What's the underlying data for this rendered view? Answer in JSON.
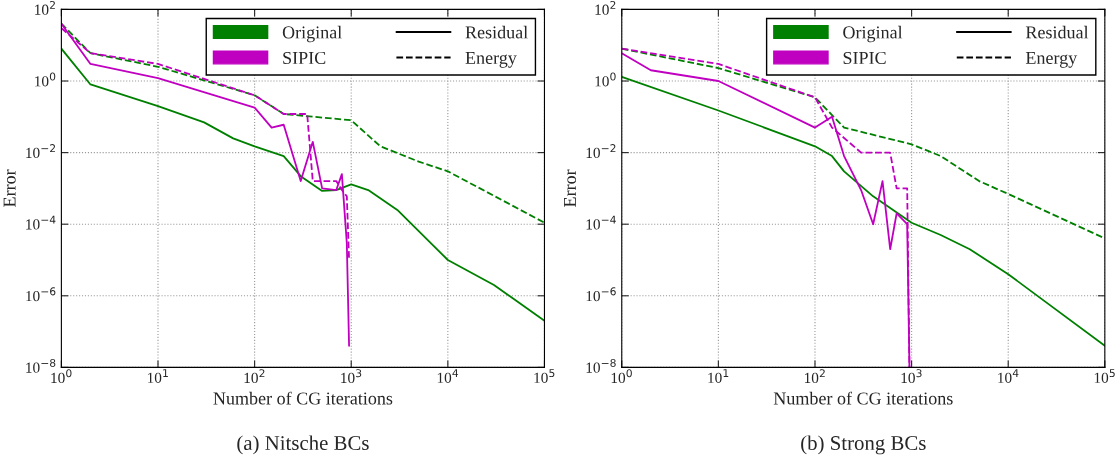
{
  "chart_data": [
    {
      "type": "line",
      "log": "xy",
      "xlabel": "Number of CG iterations",
      "ylabel": "Error",
      "annotations": [
        "(a) Nitsche BCs"
      ],
      "grid": true,
      "legend": "top right",
      "xlim": [
        1,
        100000
      ],
      "ylim": [
        1e-08,
        100
      ],
      "xticks": [
        {
          "value": 1,
          "label": "10$^{0}$"
        },
        {
          "value": 10,
          "label": "10$^{1}$"
        },
        {
          "value": 100,
          "label": "10$^{2}$"
        },
        {
          "value": 1000,
          "label": "10$^{3}$"
        },
        {
          "value": 10000,
          "label": "10$^{4}$"
        },
        {
          "value": 100000,
          "label": "10$^{5}$"
        }
      ],
      "yticks": [
        {
          "value": 1e-08,
          "label": "10$^{−8}$"
        },
        {
          "value": 1e-06,
          "label": "10$^{−6}$"
        },
        {
          "value": 0.0001,
          "label": "10$^{−4}$"
        },
        {
          "value": 0.01,
          "label": "10$^{−2}$"
        },
        {
          "value": 1,
          "label": "10$^{0}$"
        },
        {
          "value": 100,
          "label": "10$^{2}$"
        }
      ],
      "series": [
        {
          "name": "Original",
          "color": "#008000",
          "line_style": "solid",
          "x": [
            1,
            2,
            10,
            30,
            60,
            100,
            200,
            300,
            500,
            700,
            1000,
            1500,
            3000,
            10000,
            30000,
            100000
          ],
          "values": [
            8,
            0.8,
            0.2,
            0.07,
            0.025,
            0.015,
            0.008,
            0.0022,
            0.00085,
            0.0009,
            0.0013,
            0.0009,
            0.00025,
            1e-05,
            2e-06,
            2e-07
          ]
        },
        {
          "name": "Original",
          "color": "#008000",
          "line_style": "dashed",
          "x": [
            1,
            2,
            10,
            100,
            200,
            1000,
            2000,
            5000,
            10000,
            100000
          ],
          "values": [
            40,
            6,
            2.5,
            0.4,
            0.12,
            0.08,
            0.015,
            0.0056,
            0.003,
            0.00011
          ]
        },
        {
          "name": "SIPIC",
          "color": "#c000c0",
          "line_style": "solid",
          "x": [
            1,
            2,
            10,
            100,
            150,
            200,
            300,
            400,
            500,
            700,
            800,
            900,
            950
          ],
          "values": [
            40,
            3,
            1.2,
            0.18,
            0.05,
            0.06,
            0.0016,
            0.02,
            0.001,
            0.0009,
            0.0025,
            3e-05,
            4e-08
          ]
        },
        {
          "name": "SIPIC",
          "color": "#c000c0",
          "line_style": "dashed",
          "x": [
            1,
            2,
            10,
            100,
            200,
            350,
            400,
            700,
            800,
            900,
            950
          ],
          "values": [
            30,
            6,
            3,
            0.4,
            0.12,
            0.12,
            0.0016,
            0.0016,
            0.0009,
            0.0006,
            1e-05
          ]
        },
        {
          "name": "Residual",
          "color": "#000000",
          "line_style": "solid"
        },
        {
          "name": "Energy",
          "color": "#000000",
          "line_style": "dashed"
        }
      ]
    },
    {
      "type": "line",
      "log": "xy",
      "xlabel": "Number of CG iterations",
      "ylabel": "Error",
      "annotations": [
        "(b) Strong BCs"
      ],
      "grid": true,
      "legend": "top right",
      "xlim": [
        1,
        100000
      ],
      "ylim": [
        1e-08,
        100
      ],
      "xticks": [
        {
          "value": 1,
          "label": "10$^{0}$"
        },
        {
          "value": 10,
          "label": "10$^{1}$"
        },
        {
          "value": 100,
          "label": "10$^{2}$"
        },
        {
          "value": 1000,
          "label": "10$^{3}$"
        },
        {
          "value": 10000,
          "label": "10$^{4}$"
        },
        {
          "value": 100000,
          "label": "10$^{5}$"
        }
      ],
      "yticks": [
        {
          "value": 1e-08,
          "label": "10$^{−8}$"
        },
        {
          "value": 1e-06,
          "label": "10$^{−6}$"
        },
        {
          "value": 0.0001,
          "label": "10$^{−4}$"
        },
        {
          "value": 0.01,
          "label": "10$^{−2}$"
        },
        {
          "value": 1,
          "label": "10$^{0}$"
        },
        {
          "value": 100,
          "label": "10$^{2}$"
        }
      ],
      "series": [
        {
          "name": "Original",
          "color": "#008000",
          "line_style": "solid",
          "x": [
            1,
            10,
            100,
            150,
            200,
            400,
            1000,
            2000,
            4000,
            10000,
            100000
          ],
          "values": [
            1.3,
            0.15,
            0.015,
            0.008,
            0.003,
            0.0006,
            0.00011,
            5e-05,
            2e-05,
            4e-06,
            4e-08
          ]
        },
        {
          "name": "Original",
          "color": "#008000",
          "line_style": "dashed",
          "x": [
            1,
            10,
            100,
            200,
            1000,
            2000,
            5000,
            10000,
            100000
          ],
          "values": [
            8,
            2.3,
            0.35,
            0.05,
            0.017,
            0.008,
            0.0016,
            0.0007,
            4e-05
          ]
        },
        {
          "name": "SIPIC",
          "color": "#c000c0",
          "line_style": "solid",
          "x": [
            1,
            2,
            10,
            100,
            150,
            200,
            300,
            400,
            500,
            600,
            700,
            900,
            950
          ],
          "values": [
            6,
            2,
            1,
            0.05,
            0.1,
            0.008,
            0.0009,
            0.0001,
            0.0016,
            2e-05,
            0.0002,
            0.0001,
            1e-08
          ]
        },
        {
          "name": "SIPIC",
          "color": "#c000c0",
          "line_style": "dashed",
          "x": [
            1,
            10,
            100,
            150,
            300,
            600,
            700,
            900,
            950
          ],
          "values": [
            8,
            3,
            0.35,
            0.05,
            0.01,
            0.01,
            0.001,
            0.001,
            1e-08
          ]
        },
        {
          "name": "Residual",
          "color": "#000000",
          "line_style": "solid"
        },
        {
          "name": "Energy",
          "color": "#000000",
          "line_style": "dashed"
        }
      ]
    }
  ]
}
